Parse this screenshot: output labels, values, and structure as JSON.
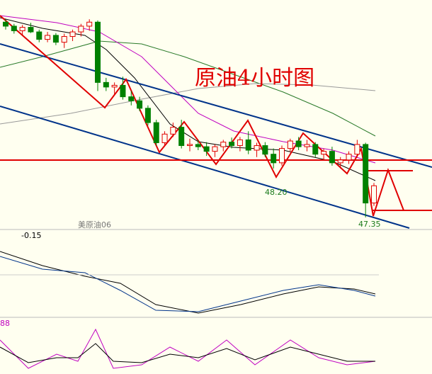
{
  "chart_data": {
    "type": "candlestick",
    "title": "原油4小时图",
    "symbol": "美原油06",
    "annotations": [
      "48.20",
      "47.35",
      "-0.15",
      "88"
    ],
    "ylim": [
      47.2,
      51.0
    ],
    "up_color": "#e00000",
    "down_color": "#008000",
    "open": [
      50.75,
      50.68,
      50.6,
      50.66,
      50.58,
      50.45,
      50.52,
      50.4,
      50.5,
      50.58,
      50.68,
      50.75,
      49.7,
      49.62,
      49.65,
      49.45,
      49.38,
      49.25,
      49.0,
      48.65,
      48.8,
      48.92,
      48.6,
      48.62,
      48.58,
      48.5,
      48.58,
      48.66,
      48.6,
      48.7,
      48.52,
      48.6,
      48.45,
      48.3,
      48.55,
      48.68,
      48.58,
      48.62,
      48.45,
      48.5,
      48.3,
      48.35,
      48.45,
      48.62,
      47.6
    ],
    "high": [
      50.8,
      50.72,
      50.7,
      50.74,
      50.62,
      50.58,
      50.56,
      50.55,
      50.62,
      50.72,
      50.8,
      50.78,
      49.78,
      49.7,
      49.8,
      49.55,
      49.45,
      49.3,
      49.05,
      48.85,
      49.0,
      49.05,
      48.72,
      48.7,
      48.66,
      48.62,
      48.7,
      48.74,
      48.75,
      48.85,
      48.65,
      48.66,
      48.55,
      48.6,
      48.72,
      48.75,
      48.7,
      48.66,
      48.55,
      48.58,
      48.4,
      48.5,
      48.7,
      48.65,
      47.95
    ],
    "low": [
      50.62,
      50.55,
      50.52,
      50.56,
      50.4,
      50.4,
      50.35,
      50.3,
      50.42,
      50.5,
      50.6,
      49.55,
      49.55,
      49.5,
      49.4,
      49.3,
      49.2,
      48.95,
      48.6,
      48.6,
      48.75,
      48.55,
      48.5,
      48.52,
      48.42,
      48.4,
      48.5,
      48.55,
      48.5,
      48.45,
      48.4,
      48.4,
      48.2,
      48.25,
      48.5,
      48.52,
      48.5,
      48.4,
      48.35,
      48.25,
      48.2,
      48.28,
      48.4,
      47.35,
      47.55
    ],
    "close": [
      50.68,
      50.6,
      50.66,
      50.58,
      50.45,
      50.52,
      50.4,
      50.5,
      50.58,
      50.68,
      50.75,
      49.7,
      49.62,
      49.65,
      49.45,
      49.38,
      49.25,
      49.0,
      48.65,
      48.8,
      48.92,
      48.6,
      48.62,
      48.58,
      48.5,
      48.58,
      48.66,
      48.6,
      48.7,
      48.52,
      48.6,
      48.45,
      48.3,
      48.55,
      48.68,
      48.58,
      48.62,
      48.45,
      48.5,
      48.3,
      48.35,
      48.45,
      48.62,
      47.6,
      47.9
    ]
  }
}
